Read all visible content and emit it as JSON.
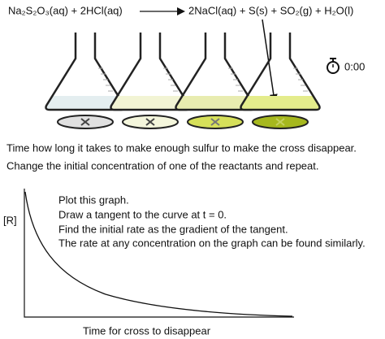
{
  "equation": {
    "reactants": "Na₂S₂O₃(aq) + 2HCl(aq)",
    "products": "2NaCl(aq)  +  S(s) + SO₂(g) + H₂O(l)"
  },
  "timer": "0:00",
  "instructions": [
    "Time how long it takes to make enough sulfur to make the cross disappear.",
    "Change the initial concentration of one of the reactants and repeat."
  ],
  "graph": {
    "y_label": "[R]",
    "x_label": "Time for cross to disappear",
    "notes": [
      "Plot this graph.",
      "Draw a tangent to the curve at t = 0.",
      "Find the initial rate as the gradient of the tangent.",
      "The rate at any concentration on the graph can be found similarly."
    ]
  }
}
